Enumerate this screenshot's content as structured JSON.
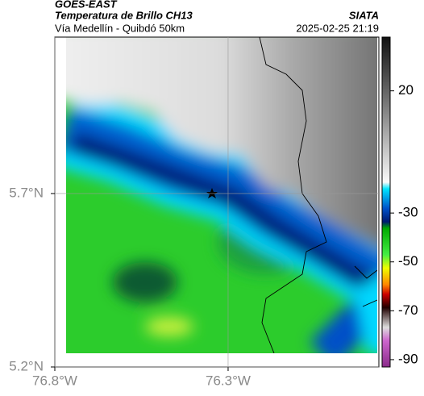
{
  "header": {
    "source": "GOES-EAST",
    "title": "Temperatura de Brillo CH13",
    "org": "SIATA",
    "subtitle": "Vía Medellín - Quibdó 50km",
    "datetime": "2025-02-25 21:19"
  },
  "chart_data": {
    "type": "map",
    "xlim": [
      -76.8,
      -75.865
    ],
    "ylim": [
      5.2,
      6.151
    ],
    "xticks": [
      {
        "value": -76.8,
        "label": "76.8°W"
      },
      {
        "value": -76.3,
        "label": "76.3°W"
      }
    ],
    "yticks": [
      {
        "value": 5.2,
        "label": "5.2°N"
      },
      {
        "value": 5.7,
        "label": "5.7°N"
      }
    ],
    "grid": true,
    "colorbar": {
      "lim": [
        -93,
        42
      ],
      "ticks": [
        20,
        -30,
        -50,
        -70,
        -90
      ]
    }
  }
}
